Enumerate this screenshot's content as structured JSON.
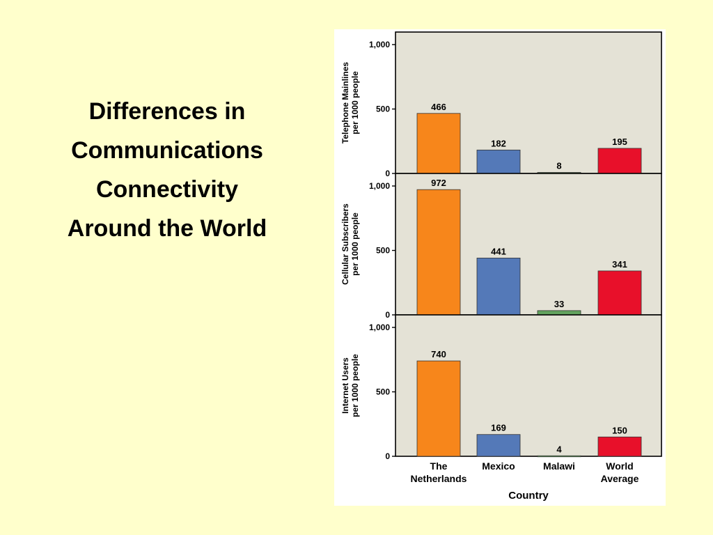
{
  "slide": {
    "title_lines": [
      "Differences in",
      "Communications",
      "Connectivity",
      "Around the World"
    ]
  },
  "chart_data": {
    "type": "bar",
    "categories": [
      [
        "The",
        "Netherlands"
      ],
      [
        "Mexico"
      ],
      [
        "Malawi"
      ],
      [
        "World",
        "Average"
      ]
    ],
    "bar_colors": [
      "#f7861b",
      "#5479b8",
      "#62a35e",
      "#e8102a"
    ],
    "xlabel": "Country",
    "panels": [
      {
        "ylabel": [
          "Telephone Mainlines",
          "per 1000 people"
        ],
        "values": [
          466,
          182,
          8,
          195
        ],
        "ylim": [
          0,
          1000
        ],
        "yticks": [
          0,
          500,
          1000
        ],
        "ytick_labels": [
          "0",
          "500",
          "1,000"
        ]
      },
      {
        "ylabel": [
          "Cellular Subscribers",
          "per 1000 people"
        ],
        "values": [
          972,
          441,
          33,
          341
        ],
        "ylim": [
          0,
          1000
        ],
        "yticks": [
          0,
          500,
          1000
        ],
        "ytick_labels": [
          "0",
          "500",
          "1,000"
        ]
      },
      {
        "ylabel": [
          "Internet Users",
          "per 1000 people"
        ],
        "values": [
          740,
          169,
          4,
          150
        ],
        "ylim": [
          0,
          1000
        ],
        "yticks": [
          0,
          500,
          1000
        ],
        "ytick_labels": [
          "0",
          "500",
          "1,000"
        ]
      }
    ]
  }
}
